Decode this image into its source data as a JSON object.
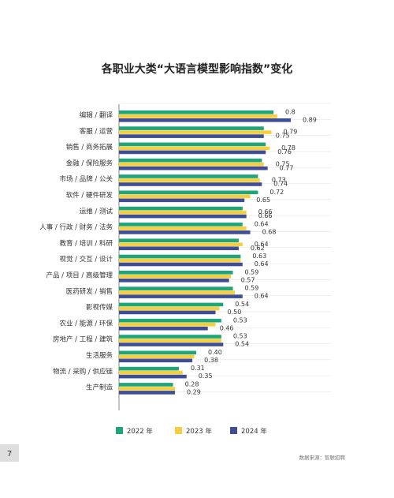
{
  "page": {
    "number": "7",
    "source": "数据来源：智联招聘"
  },
  "chart_data": {
    "type": "bar",
    "orientation": "horizontal",
    "title": "各职业大类“大语言模型影响指数”变化",
    "categories": [
      "编辑 / 翻译",
      "客服 / 运营",
      "销售 / 商务拓展",
      "金融 / 保险服务",
      "市场 / 品牌 / 公关",
      "软件 / 硬件研发",
      "运维 / 测试",
      "人事 / 行政 / 财务 / 法务",
      "教育 / 培训 / 科研",
      "视觉 / 交互 / 设计",
      "产品 / 项目 / 高级管理",
      "医药研发 / 销售",
      "影视传媒",
      "农业 / 能源 / 环保",
      "房地产 / 工程 / 建筑",
      "生活服务",
      "物流 / 采购 / 供应链",
      "生产制造"
    ],
    "series": [
      {
        "name": "2022 年",
        "color": "#1fa57a",
        "values": [
          "0.8",
          null,
          null,
          null,
          null,
          "0.72",
          null,
          "0.64",
          null,
          "0.63",
          "0.59",
          "0.59",
          "0.54",
          "0.53",
          "0.53",
          "0.40",
          "0.31",
          "0.28"
        ]
      },
      {
        "name": "2023 年",
        "color": "#f5cf3f",
        "values": [
          null,
          "0.79",
          "0.78",
          "0.75",
          "0.73",
          null,
          "0.66",
          null,
          "0.64",
          null,
          null,
          null,
          null,
          null,
          null,
          null,
          null,
          null
        ]
      },
      {
        "name": "2024 年",
        "color": "#3d4e96",
        "values": [
          "0.89",
          "0.75",
          "0.76",
          "0.77",
          "0.74",
          "0.65",
          "0.66",
          "0.68",
          "0.62",
          "0.64",
          "0.57",
          "0.64",
          "0.50",
          "0.46",
          "0.54",
          "0.38",
          "0.35",
          "0.29"
        ]
      }
    ],
    "bar_estimates": [
      [
        0.8,
        0.82,
        0.89
      ],
      [
        0.75,
        0.79,
        0.75
      ],
      [
        0.76,
        0.78,
        0.76
      ],
      [
        0.74,
        0.75,
        0.77
      ],
      [
        0.72,
        0.73,
        0.74
      ],
      [
        0.72,
        0.68,
        0.65
      ],
      [
        0.64,
        0.66,
        0.66
      ],
      [
        0.64,
        0.66,
        0.68
      ],
      [
        0.62,
        0.64,
        0.62
      ],
      [
        0.63,
        0.63,
        0.64
      ],
      [
        0.59,
        0.58,
        0.57
      ],
      [
        0.59,
        0.6,
        0.64
      ],
      [
        0.54,
        0.52,
        0.5
      ],
      [
        0.53,
        0.5,
        0.46
      ],
      [
        0.53,
        0.53,
        0.54
      ],
      [
        0.4,
        0.39,
        0.38
      ],
      [
        0.31,
        0.33,
        0.35
      ],
      [
        0.28,
        0.29,
        0.29
      ]
    ],
    "xlim": [
      0,
      1
    ],
    "grid": true,
    "legend": "bottom"
  }
}
